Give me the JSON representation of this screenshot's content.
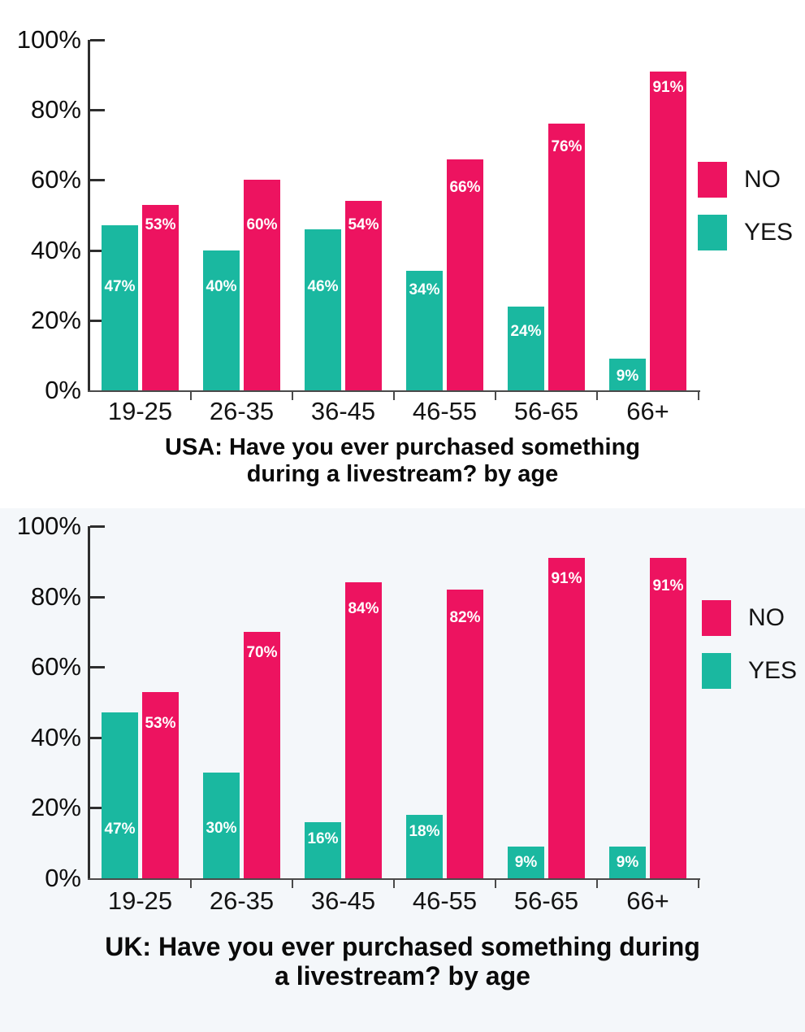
{
  "chart_data": [
    {
      "id": "usa",
      "type": "bar",
      "title": "USA: Have you ever purchased something during a livestream? by age",
      "title_lines": [
        "USA: Have you ever purchased something",
        "during a livestream? by age"
      ],
      "categories": [
        "19-25",
        "26-35",
        "36-45",
        "46-55",
        "56-65",
        "66+"
      ],
      "series": [
        {
          "name": "YES",
          "color": "#1AB8A0",
          "values": [
            47,
            40,
            46,
            34,
            24,
            9
          ],
          "labels": [
            "47%",
            "40%",
            "46%",
            "34%",
            "24%",
            "9%"
          ]
        },
        {
          "name": "NO",
          "color": "#ED1360",
          "values": [
            53,
            60,
            54,
            66,
            76,
            91
          ],
          "labels": [
            "53%",
            "60%",
            "54%",
            "66%",
            "76%",
            "91%"
          ]
        }
      ],
      "xlabel": "",
      "ylabel": "",
      "ylim": [
        0,
        100
      ],
      "y_ticks": [
        "0%",
        "20%",
        "40%",
        "60%",
        "80%",
        "100%"
      ],
      "grid": false,
      "legend": {
        "position": "right",
        "entries": [
          "NO",
          "YES"
        ]
      },
      "background": "#FFFFFF"
    },
    {
      "id": "uk",
      "type": "bar",
      "title": "UK: Have you ever purchased something during a livestream? by age",
      "title_lines": [
        "UK: Have you ever purchased something during",
        "a livestream? by age"
      ],
      "categories": [
        "19-25",
        "26-35",
        "36-45",
        "46-55",
        "56-65",
        "66+"
      ],
      "series": [
        {
          "name": "YES",
          "color": "#1AB8A0",
          "values": [
            47,
            30,
            16,
            18,
            9,
            9
          ],
          "labels": [
            "47%",
            "30%",
            "16%",
            "18%",
            "9%",
            "9%"
          ]
        },
        {
          "name": "NO",
          "color": "#ED1360",
          "values": [
            53,
            70,
            84,
            82,
            91,
            91
          ],
          "labels": [
            "53%",
            "70%",
            "84%",
            "82%",
            "91%",
            "91%"
          ]
        }
      ],
      "xlabel": "",
      "ylabel": "",
      "ylim": [
        0,
        100
      ],
      "y_ticks": [
        "0%",
        "20%",
        "40%",
        "60%",
        "80%",
        "100%"
      ],
      "grid": false,
      "legend": {
        "position": "right",
        "entries": [
          "NO",
          "YES"
        ]
      },
      "background": "#F4F7FA"
    }
  ]
}
